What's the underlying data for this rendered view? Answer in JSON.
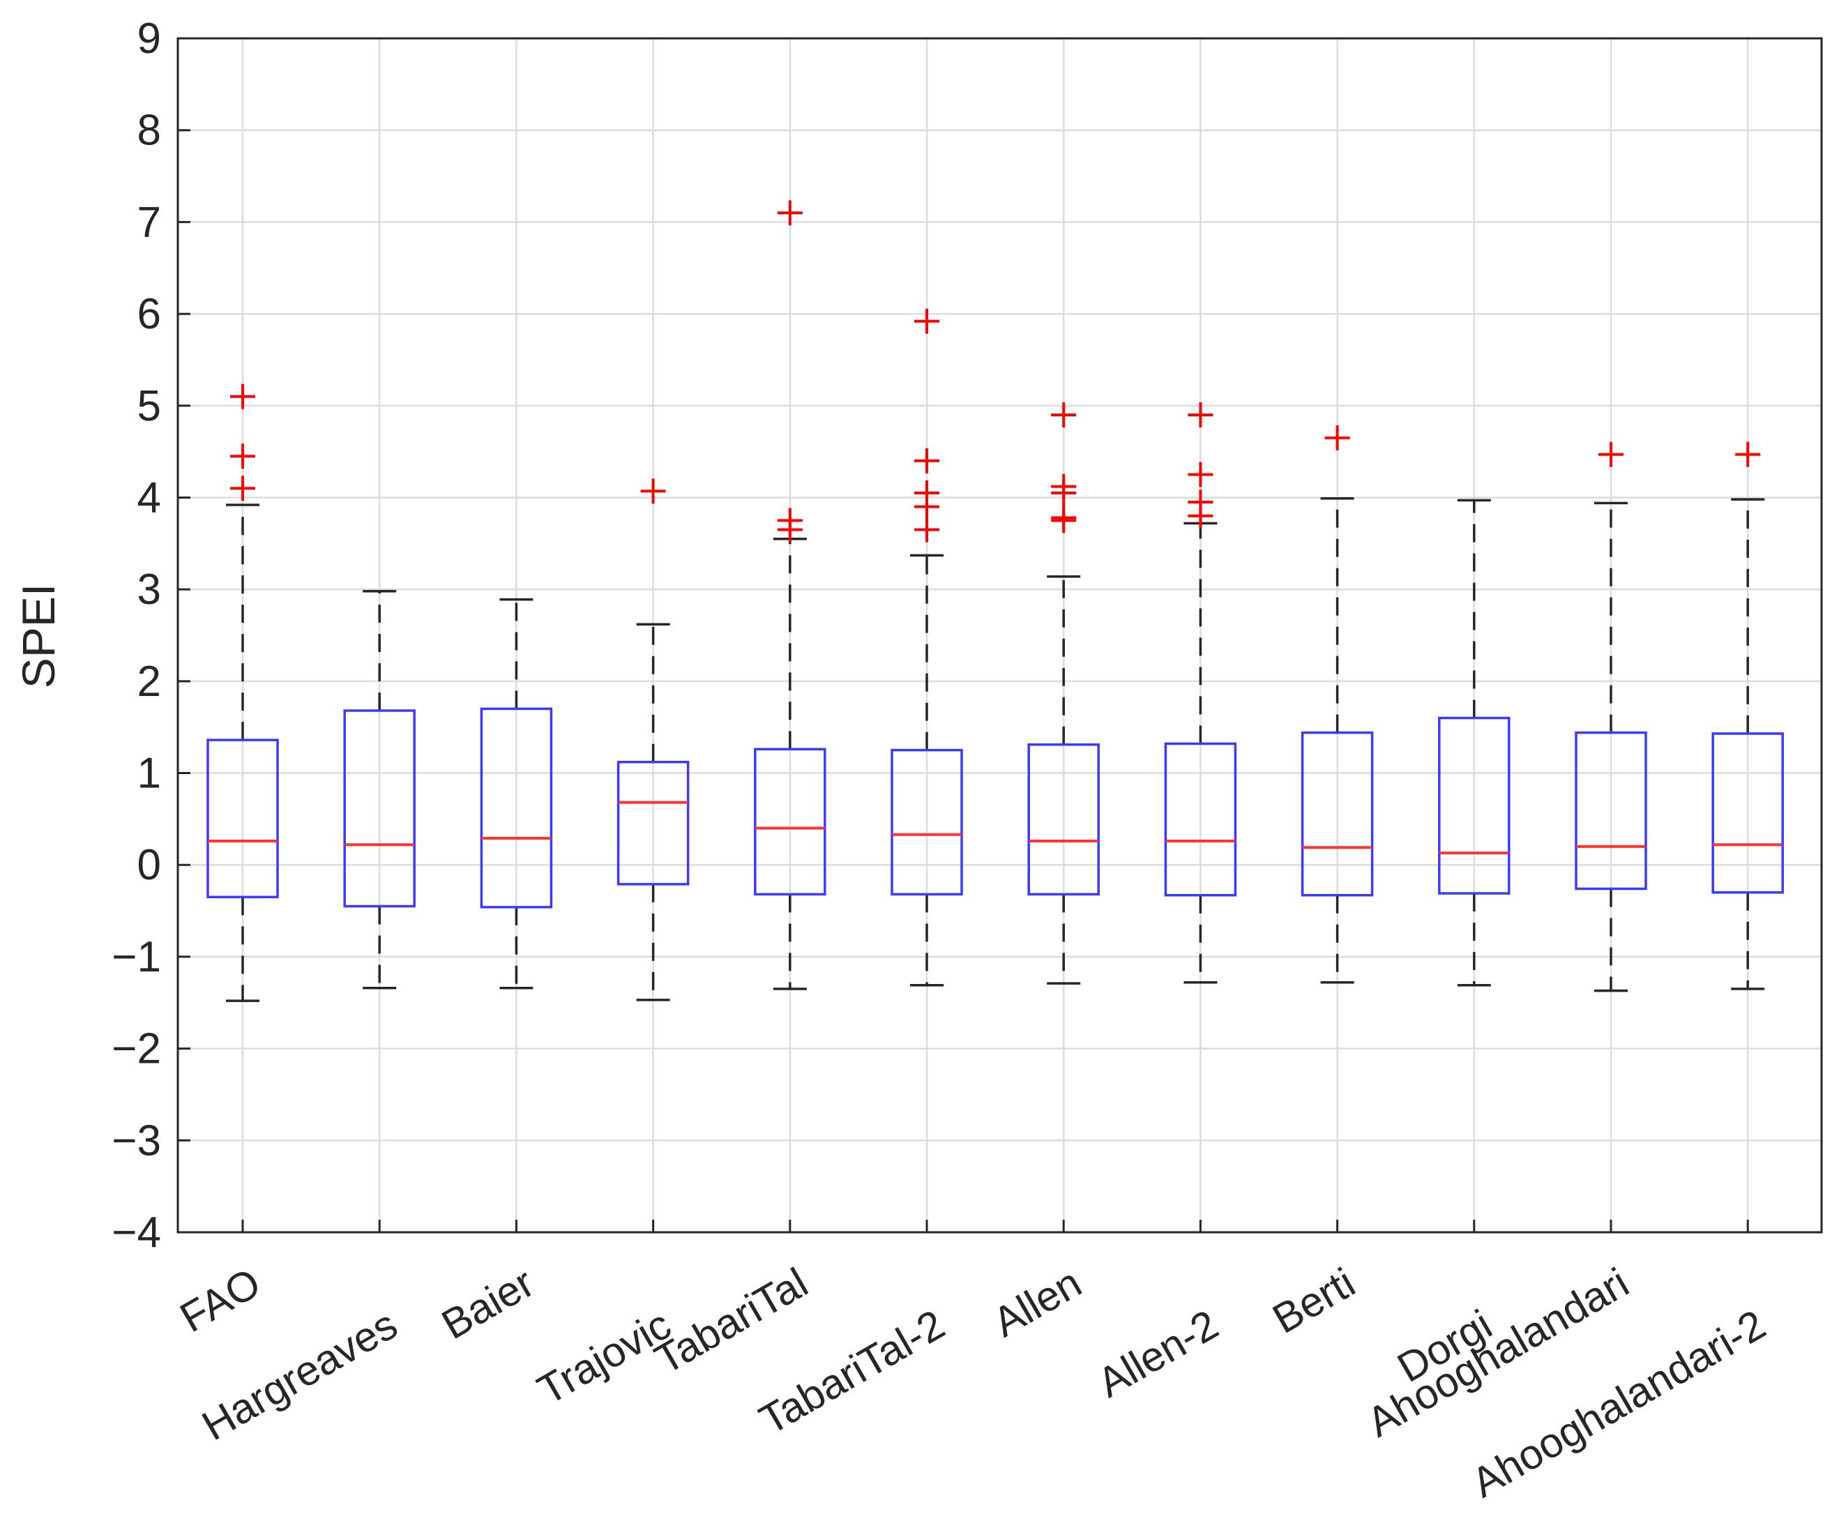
{
  "chart_data": {
    "type": "box",
    "title": "",
    "xlabel": "",
    "ylabel": "SPEI",
    "ylim": [
      -4,
      9
    ],
    "yticks": [
      -4,
      -3,
      -2,
      -1,
      0,
      1,
      2,
      3,
      4,
      5,
      6,
      7,
      8,
      9
    ],
    "ytick_labels": [
      "−4",
      "−3",
      "−2",
      "−1",
      "0",
      "1",
      "2",
      "3",
      "4",
      "5",
      "6",
      "7",
      "8",
      "9"
    ],
    "grid": true,
    "colors": {
      "box": "#3a3aff",
      "median": "#ff3333",
      "whisker": "#262626",
      "outlier": "#ff0000"
    },
    "categories": [
      "FAO",
      "Hargreaves",
      "Baier",
      "Trajovic",
      "TabariTal",
      "TabariTal-2",
      "Allen",
      "Allen-2",
      "Berti",
      "Dorgi",
      "Ahooghalandari",
      "Ahooghalandari-2"
    ],
    "boxes": [
      {
        "whisker_low": -1.48,
        "q1": -0.35,
        "median": 0.26,
        "q3": 1.36,
        "whisker_high": 3.92,
        "outliers": [
          4.1,
          4.45,
          5.1
        ]
      },
      {
        "whisker_low": -1.34,
        "q1": -0.45,
        "median": 0.22,
        "q3": 1.68,
        "whisker_high": 2.98,
        "outliers": []
      },
      {
        "whisker_low": -1.34,
        "q1": -0.46,
        "median": 0.29,
        "q3": 1.7,
        "whisker_high": 2.89,
        "outliers": []
      },
      {
        "whisker_low": -1.47,
        "q1": -0.21,
        "median": 0.68,
        "q3": 1.12,
        "whisker_high": 2.62,
        "outliers": [
          4.07
        ]
      },
      {
        "whisker_low": -1.35,
        "q1": -0.32,
        "median": 0.4,
        "q3": 1.26,
        "whisker_high": 3.55,
        "outliers": [
          3.65,
          3.75,
          7.1
        ]
      },
      {
        "whisker_low": -1.31,
        "q1": -0.32,
        "median": 0.33,
        "q3": 1.25,
        "whisker_high": 3.37,
        "outliers": [
          3.65,
          3.9,
          4.05,
          4.4,
          5.92
        ]
      },
      {
        "whisker_low": -1.29,
        "q1": -0.32,
        "median": 0.26,
        "q3": 1.31,
        "whisker_high": 3.14,
        "outliers": [
          3.75,
          3.78,
          4.05,
          4.12,
          4.9
        ]
      },
      {
        "whisker_low": -1.28,
        "q1": -0.33,
        "median": 0.26,
        "q3": 1.32,
        "whisker_high": 3.72,
        "outliers": [
          3.8,
          3.95,
          4.25,
          4.9
        ]
      },
      {
        "whisker_low": -1.28,
        "q1": -0.33,
        "median": 0.19,
        "q3": 1.44,
        "whisker_high": 3.99,
        "outliers": [
          4.65
        ]
      },
      {
        "whisker_low": -1.31,
        "q1": -0.31,
        "median": 0.13,
        "q3": 1.6,
        "whisker_high": 3.97,
        "outliers": []
      },
      {
        "whisker_low": -1.37,
        "q1": -0.26,
        "median": 0.2,
        "q3": 1.44,
        "whisker_high": 3.94,
        "outliers": [
          4.47
        ]
      },
      {
        "whisker_low": -1.35,
        "q1": -0.3,
        "median": 0.22,
        "q3": 1.43,
        "whisker_high": 3.98,
        "outliers": [
          4.47
        ]
      }
    ]
  }
}
